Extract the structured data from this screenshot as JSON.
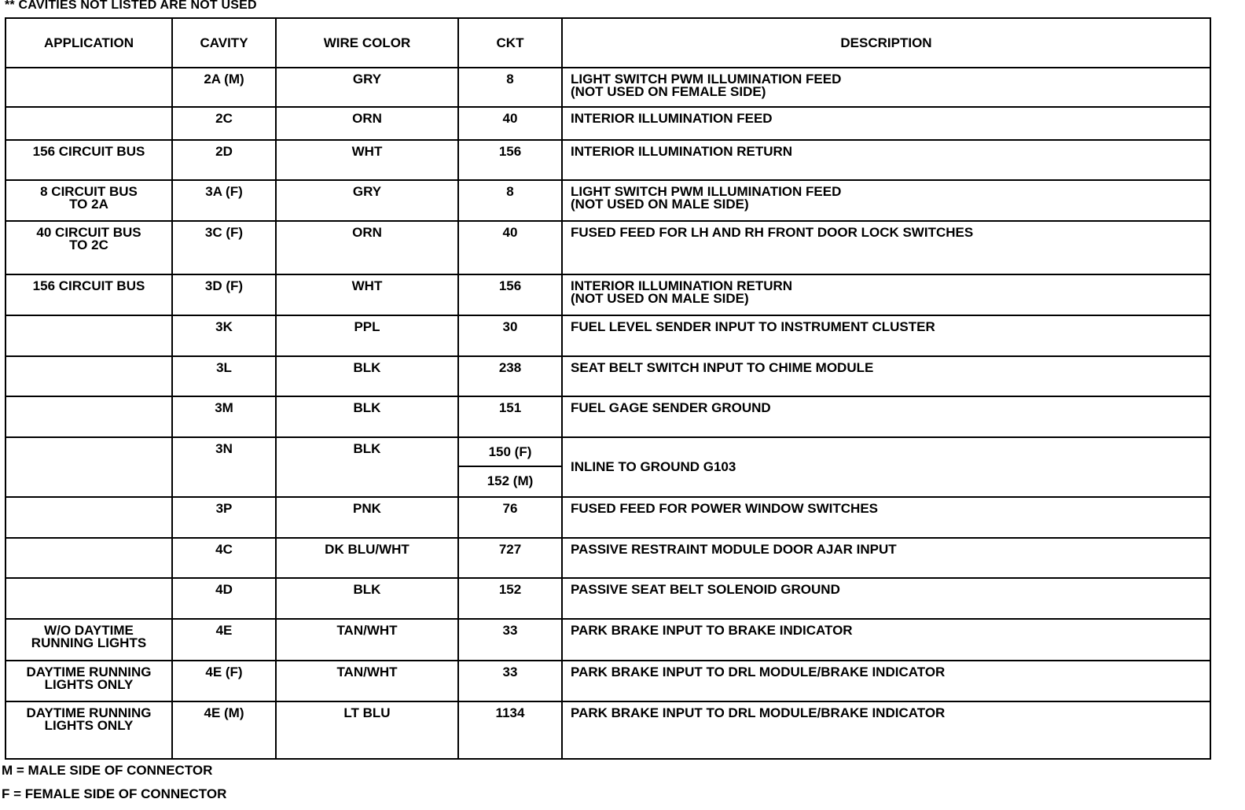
{
  "top_note": "** CAVITIES NOT LISTED ARE NOT USED",
  "headers": {
    "application": "APPLICATION",
    "cavity": "CAVITY",
    "wire_color": "WIRE COLOR",
    "ckt": "CKT",
    "description": "DESCRIPTION"
  },
  "rows": [
    {
      "application": "",
      "cavity": "2A (M)",
      "wire_color": "GRY",
      "ckt": "8",
      "description": "LIGHT SWITCH PWM ILLUMINATION FEED",
      "description2": "(NOT USED ON FEMALE SIDE)"
    },
    {
      "application": "",
      "cavity": "2C",
      "wire_color": "ORN",
      "ckt": "40",
      "description": "INTERIOR ILLUMINATION FEED"
    },
    {
      "application": "156 CIRCUIT BUS",
      "cavity": "2D",
      "wire_color": "WHT",
      "ckt": "156",
      "description": "INTERIOR ILLUMINATION RETURN"
    },
    {
      "application": "8 CIRCUIT BUS",
      "application2": "TO 2A",
      "cavity": "3A (F)",
      "wire_color": "GRY",
      "ckt": "8",
      "description": "LIGHT SWITCH PWM ILLUMINATION FEED",
      "description2": "(NOT USED ON MALE SIDE)"
    },
    {
      "application": "40 CIRCUIT BUS",
      "application2": "TO 2C",
      "cavity": "3C (F)",
      "wire_color": "ORN",
      "ckt": "40",
      "description": "FUSED FEED FOR LH AND RH FRONT DOOR LOCK SWITCHES"
    },
    {
      "application": "156 CIRCUIT BUS",
      "cavity": "3D (F)",
      "wire_color": "WHT",
      "ckt": "156",
      "description": "INTERIOR ILLUMINATION RETURN",
      "description2": "(NOT USED ON MALE SIDE)"
    },
    {
      "application": "",
      "cavity": "3K",
      "wire_color": "PPL",
      "ckt": "30",
      "description": "FUEL LEVEL SENDER INPUT TO INSTRUMENT CLUSTER"
    },
    {
      "application": "",
      "cavity": "3L",
      "wire_color": "BLK",
      "ckt": "238",
      "description": "SEAT BELT SWITCH INPUT TO CHIME MODULE"
    },
    {
      "application": "",
      "cavity": "3M",
      "wire_color": "BLK",
      "ckt": "151",
      "description": "FUEL GAGE SENDER GROUND"
    },
    {
      "application": "",
      "cavity": "3N",
      "wire_color": "BLK",
      "ckt": "150 (F)",
      "ckt2": "152 (M)",
      "description": "INLINE TO GROUND G103"
    },
    {
      "application": "",
      "cavity": "3P",
      "wire_color": "PNK",
      "ckt": "76",
      "description": "FUSED FEED FOR POWER WINDOW SWITCHES"
    },
    {
      "application": "",
      "cavity": "4C",
      "wire_color": "DK BLU/WHT",
      "ckt": "727",
      "description": "PASSIVE RESTRAINT MODULE DOOR AJAR INPUT"
    },
    {
      "application": "",
      "cavity": "4D",
      "wire_color": "BLK",
      "ckt": "152",
      "description": "PASSIVE SEAT BELT SOLENOID GROUND"
    },
    {
      "application": "W/O DAYTIME",
      "application2": "RUNNING LIGHTS",
      "cavity": "4E",
      "wire_color": "TAN/WHT",
      "ckt": "33",
      "description": "PARK BRAKE INPUT TO BRAKE INDICATOR"
    },
    {
      "application": "DAYTIME RUNNING",
      "application2": "LIGHTS ONLY",
      "cavity": "4E (F)",
      "wire_color": "TAN/WHT",
      "ckt": "33",
      "description": "PARK BRAKE INPUT TO DRL MODULE/BRAKE INDICATOR"
    },
    {
      "application": "DAYTIME RUNNING",
      "application2": "LIGHTS ONLY",
      "cavity": "4E (M)",
      "wire_color": "LT BLU",
      "ckt": "1134",
      "description": "PARK BRAKE INPUT TO DRL MODULE/BRAKE INDICATOR"
    }
  ],
  "footnotes": [
    "M = MALE SIDE OF CONNECTOR",
    "F  = FEMALE SIDE OF CONNECTOR"
  ]
}
